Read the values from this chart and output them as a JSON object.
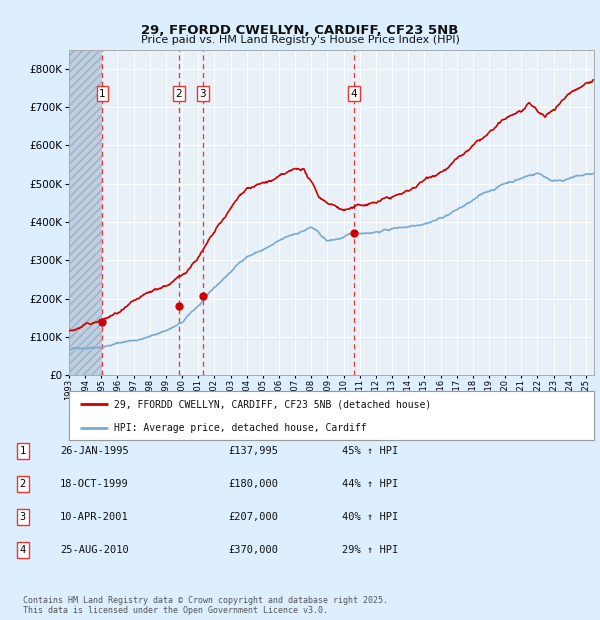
{
  "title1": "29, FFORDD CWELLYN, CARDIFF, CF23 5NB",
  "title2": "Price paid vs. HM Land Registry's House Price Index (HPI)",
  "ylim": [
    0,
    850000
  ],
  "yticks": [
    0,
    100000,
    200000,
    300000,
    400000,
    500000,
    600000,
    700000,
    800000
  ],
  "bg_color": "#ddeeff",
  "plot_bg": "#e8f0f8",
  "hatch_color": "#c0cfe0",
  "grid_color": "#ffffff",
  "red_line_color": "#cc0000",
  "blue_line_color": "#7aaad0",
  "sale_dates": [
    1995.07,
    1999.8,
    2001.28,
    2010.65
  ],
  "sale_prices": [
    137995,
    180000,
    207000,
    370000
  ],
  "sale_labels": [
    "1",
    "2",
    "3",
    "4"
  ],
  "vline_color": "#ee3333",
  "legend_red_label": "29, FFORDD CWELLYN, CARDIFF, CF23 5NB (detached house)",
  "legend_blue_label": "HPI: Average price, detached house, Cardiff",
  "table_rows": [
    [
      "1",
      "26-JAN-1995",
      "£137,995",
      "45% ↑ HPI"
    ],
    [
      "2",
      "18-OCT-1999",
      "£180,000",
      "44% ↑ HPI"
    ],
    [
      "3",
      "10-APR-2001",
      "£207,000",
      "40% ↑ HPI"
    ],
    [
      "4",
      "25-AUG-2010",
      "£370,000",
      "29% ↑ HPI"
    ]
  ],
  "footer": "Contains HM Land Registry data © Crown copyright and database right 2025.\nThis data is licensed under the Open Government Licence v3.0.",
  "xmin": 1993.0,
  "xmax": 2025.5,
  "hatch_xmax": 1995.07
}
